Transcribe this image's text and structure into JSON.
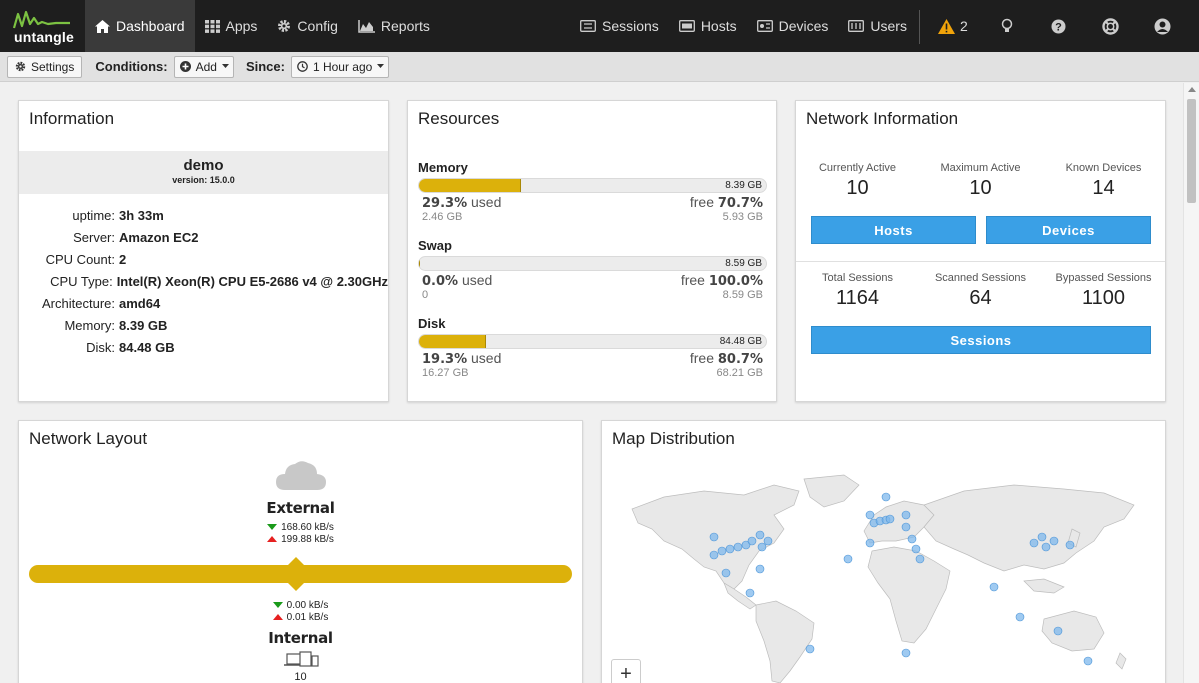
{
  "nav": {
    "brand": "untangle",
    "items": [
      {
        "label": "Dashboard",
        "icon": "home-icon"
      },
      {
        "label": "Apps",
        "icon": "grid-icon"
      },
      {
        "label": "Config",
        "icon": "gear-icon"
      },
      {
        "label": "Reports",
        "icon": "area-chart-icon"
      }
    ],
    "right_items": [
      {
        "label": "Sessions",
        "icon": "sessions-icon"
      },
      {
        "label": "Hosts",
        "icon": "hosts-icon"
      },
      {
        "label": "Devices",
        "icon": "devices-icon"
      },
      {
        "label": "Users",
        "icon": "users-icon"
      }
    ],
    "alert_count": "2"
  },
  "toolbar": {
    "settings_label": "Settings",
    "conditions_label": "Conditions:",
    "add_label": "Add",
    "since_label": "Since:",
    "since_value": "1 Hour ago"
  },
  "information": {
    "title": "Information",
    "name": "demo",
    "version": "version: 15.0.0",
    "rows": [
      {
        "key": "uptime:",
        "value": "3h 33m"
      },
      {
        "key": "Server:",
        "value": "Amazon EC2"
      },
      {
        "key": "CPU Count:",
        "value": "2"
      },
      {
        "key": "CPU Type:",
        "value": "Intel(R) Xeon(R) CPU E5-2686 v4 @ 2.30GHz"
      },
      {
        "key": "Architecture:",
        "value": "amd64"
      },
      {
        "key": "Memory:",
        "value": "8.39 GB"
      },
      {
        "key": "Disk:",
        "value": "84.48 GB"
      }
    ]
  },
  "resources": {
    "title": "Resources",
    "items": [
      {
        "name": "Memory",
        "total": "8.39 GB",
        "used_pct": "29.3%",
        "used_word": "used",
        "free_word": "free",
        "free_pct": "70.7%",
        "used_amt": "2.46 GB",
        "free_amt": "5.93 GB",
        "fill": 0.293
      },
      {
        "name": "Swap",
        "total": "8.59 GB",
        "used_pct": "0.0%",
        "used_word": "used",
        "free_word": "free",
        "free_pct": "100.0%",
        "used_amt": "0",
        "free_amt": "8.59 GB",
        "fill": 0.0
      },
      {
        "name": "Disk",
        "total": "84.48 GB",
        "used_pct": "19.3%",
        "used_word": "used",
        "free_word": "free",
        "free_pct": "80.7%",
        "used_amt": "16.27 GB",
        "free_amt": "68.21 GB",
        "fill": 0.193
      }
    ]
  },
  "network_info": {
    "title": "Network Information",
    "currently_active_label": "Currently Active",
    "currently_active": "10",
    "maximum_active_label": "Maximum Active",
    "maximum_active": "10",
    "known_devices_label": "Known Devices",
    "known_devices": "14",
    "hosts_button": "Hosts",
    "devices_button": "Devices",
    "total_sessions_label": "Total Sessions",
    "total_sessions": "1164",
    "scanned_sessions_label": "Scanned Sessions",
    "scanned_sessions": "64",
    "bypassed_sessions_label": "Bypassed Sessions",
    "bypassed_sessions": "1100",
    "sessions_button": "Sessions"
  },
  "network_layout": {
    "title": "Network Layout",
    "external_label": "External",
    "external_down": "168.60 kB/s",
    "external_up": "199.88 kB/s",
    "internal_down": "0.00 kB/s",
    "internal_up": "0.01 kB/s",
    "internal_label": "Internal",
    "internal_count": "10"
  },
  "map": {
    "title": "Map Distribution",
    "zoom_in_label": "+"
  },
  "colors": {
    "accent": "#3aa0e6",
    "gauge": "#dcb10b",
    "nav_bg": "#1e1e1e",
    "alert": "#f0a30a"
  }
}
